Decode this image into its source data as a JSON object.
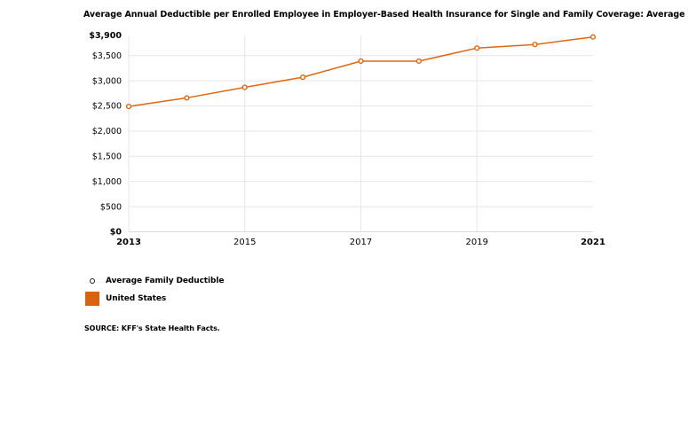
{
  "title": "Average Annual Deductible per Enrolled Employee in Employer-Based Health Insurance for Single and Family Coverage: Average F",
  "legend": {
    "series_label": "Average Family Deductible",
    "region_label": "United States"
  },
  "source": "SOURCE: KFF's State Health Facts.",
  "colors": {
    "line": "#E0660F",
    "marker_fill": "#FFFFFF",
    "swatch": "#D9610F",
    "gridline": "#E7E7E7",
    "axis_line": "#DBDBDB",
    "text": "#000000"
  },
  "chart_data": {
    "type": "line",
    "title": "Average Annual Deductible per Enrolled Employee in Employer-Based Health Insurance for Single and Family Coverage: Average F",
    "x": [
      2013,
      2014,
      2015,
      2016,
      2017,
      2018,
      2019,
      2020,
      2021
    ],
    "series": [
      {
        "name": "Average Family Deductible",
        "region": "United States",
        "values": [
          2490,
          2660,
          2870,
          3070,
          3390,
          3390,
          3650,
          3720,
          3870
        ]
      }
    ],
    "ylim": [
      0,
      3900
    ],
    "yticks": [
      0,
      500,
      1000,
      1500,
      2000,
      2500,
      3000,
      3500,
      3900
    ],
    "ytick_labels": [
      "$0",
      "$500",
      "$1,000",
      "$1,500",
      "$2,000",
      "$2,500",
      "$3,000",
      "$3,500",
      "$3,900"
    ],
    "xticks": [
      2013,
      2015,
      2017,
      2019,
      2021
    ],
    "xtick_labels": [
      "2013",
      "2015",
      "2017",
      "2019",
      "2021"
    ],
    "grid": true,
    "marker": "open-circle",
    "legend_position": "bottom-left"
  }
}
